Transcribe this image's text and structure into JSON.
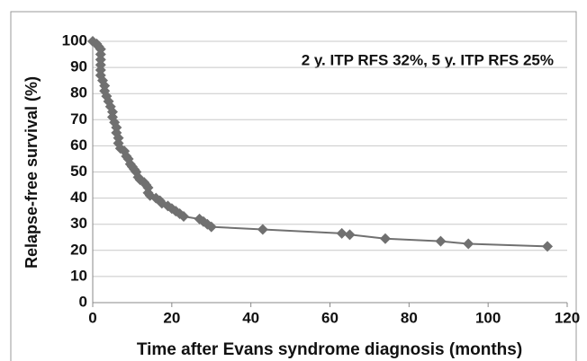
{
  "chart_data": {
    "type": "line",
    "annotation": "2 y. ITP RFS 32%, 5 y. ITP RFS 25%",
    "xlabel": "Time after Evans syndrome diagnosis (months)",
    "ylabel": "Relapse-free survival (%)",
    "x": [
      0,
      1,
      1.5,
      2,
      2,
      2,
      2,
      2,
      2,
      2.5,
      3,
      3,
      3.5,
      4,
      4.5,
      5,
      5,
      5.5,
      6,
      6,
      6.5,
      6.5,
      7,
      8,
      8.5,
      9,
      9.5,
      10,
      10.5,
      11,
      11.5,
      12,
      13,
      13.5,
      14,
      14,
      14.5,
      16,
      17,
      17.5,
      19,
      20,
      21,
      22,
      23,
      27,
      28,
      29,
      30,
      43,
      63,
      65,
      74,
      88,
      95,
      115
    ],
    "values": [
      100,
      99,
      98,
      97,
      95,
      93,
      91,
      89,
      87,
      85,
      83,
      81,
      79,
      77,
      75,
      73,
      71,
      69,
      67,
      65,
      63,
      61,
      59,
      58,
      56,
      55,
      53,
      52,
      51,
      50,
      48,
      47,
      46,
      45,
      44,
      42,
      41,
      40,
      39,
      38,
      37,
      36,
      35,
      34,
      33,
      32,
      31,
      30,
      29,
      28,
      26.5,
      26,
      24.5,
      23.5,
      22.5,
      21.5
    ],
    "color": "#707070",
    "xlim": [
      0,
      120
    ],
    "xticks": [
      0,
      20,
      40,
      60,
      80,
      100,
      120
    ],
    "ylim": [
      0,
      100
    ],
    "yticks": [
      0,
      10,
      20,
      30,
      40,
      50,
      60,
      70,
      80,
      90,
      100
    ],
    "grid": true
  }
}
